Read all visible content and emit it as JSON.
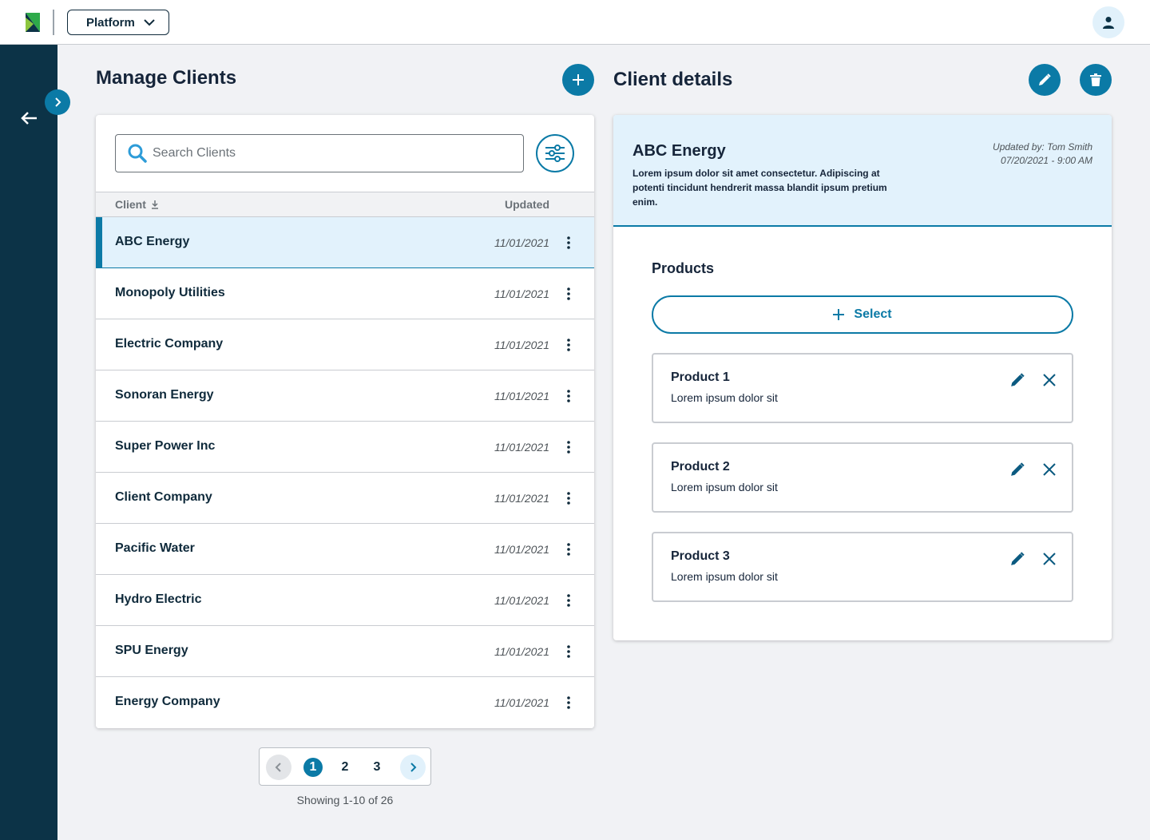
{
  "topbar": {
    "platform_label": "Platform"
  },
  "icons": {
    "logo": "logo-icon",
    "platform_dropdown": "chevron-down-icon",
    "avatar": "user-icon",
    "back": "arrow-left-icon",
    "expand": "chevron-right-icon",
    "add": "plus-icon",
    "edit": "pencil-icon",
    "delete": "trash-icon",
    "search": "search-icon",
    "filter": "sliders-icon",
    "sort": "sort-down-icon",
    "row_menu": "more-vertical-icon",
    "remove": "close-icon"
  },
  "colors": {
    "accent": "#0b7aa6",
    "sidenav": "#0c3347",
    "selected_row": "#e2f2fc",
    "text_dark": "#0f2a3b"
  },
  "clients_panel": {
    "title": "Manage Clients",
    "search_placeholder": "Search Clients",
    "columns": {
      "client": "Client",
      "updated": "Updated"
    },
    "rows": [
      {
        "name": "ABC Energy",
        "updated": "11/01/2021"
      },
      {
        "name": "Monopoly Utilities",
        "updated": "11/01/2021"
      },
      {
        "name": "Electric Company",
        "updated": "11/01/2021"
      },
      {
        "name": "Sonoran Energy",
        "updated": "11/01/2021"
      },
      {
        "name": "Super Power Inc",
        "updated": "11/01/2021"
      },
      {
        "name": "Client Company",
        "updated": "11/01/2021"
      },
      {
        "name": "Pacific Water",
        "updated": "11/01/2021"
      },
      {
        "name": "Hydro Electric",
        "updated": "11/01/2021"
      },
      {
        "name": "SPU Energy",
        "updated": "11/01/2021"
      },
      {
        "name": "Energy Company",
        "updated": "11/01/2021"
      }
    ],
    "selected_index": 0,
    "pagination": {
      "pages": [
        "1",
        "2",
        "3"
      ],
      "current": "1",
      "showing": "Showing 1-10 of 26"
    }
  },
  "details_panel": {
    "title": "Client details",
    "client_name": "ABC Energy",
    "description": "Lorem ipsum dolor sit amet consectetur. Adipiscing at potenti tincidunt hendrerit massa blandit ipsum pretium enim.",
    "updated_by": "Updated by: Tom Smith",
    "updated_at": "07/20/2021 - 9:00 AM",
    "products_title": "Products",
    "select_label": "Select",
    "products": [
      {
        "name": "Product 1",
        "description": "Lorem ipsum dolor sit"
      },
      {
        "name": "Product 2",
        "description": "Lorem ipsum dolor sit"
      },
      {
        "name": "Product 3",
        "description": "Lorem ipsum dolor sit"
      }
    ]
  }
}
